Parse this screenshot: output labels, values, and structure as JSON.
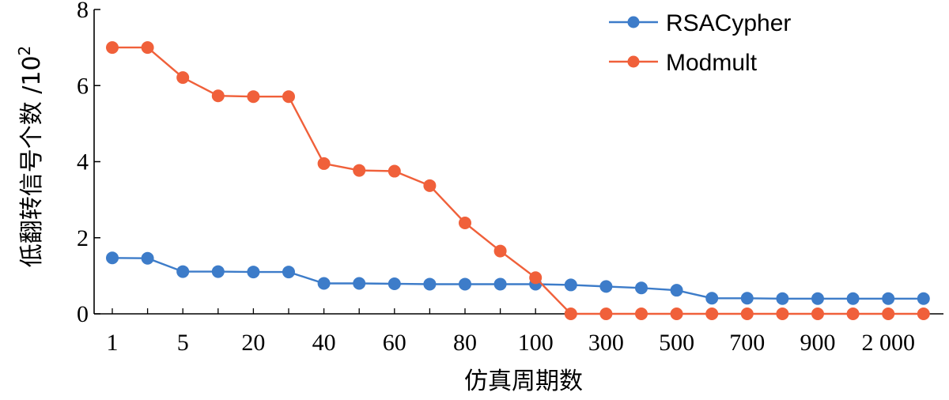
{
  "chart_data": {
    "type": "line",
    "title": "",
    "xlabel": "仿真周期数",
    "ylabel": "低翻转信号个数 /10",
    "ylabel_exponent": "2",
    "ylim": [
      0,
      8
    ],
    "yticks": [
      "0",
      "2",
      "4",
      "6",
      "8"
    ],
    "xtick_labels": [
      "1",
      "5",
      "20",
      "40",
      "60",
      "80",
      "100",
      "300",
      "500",
      "700",
      "900",
      "2 000"
    ],
    "x": [
      "1",
      "3",
      "5",
      "10",
      "20",
      "30",
      "40",
      "50",
      "60",
      "70",
      "80",
      "90",
      "100",
      "200",
      "300",
      "400",
      "500",
      "600",
      "700",
      "800",
      "900",
      "1 000",
      "2 000",
      "3 000"
    ],
    "series": [
      {
        "name": "RSACypher",
        "color": "#3d7cc9",
        "values": [
          1.47,
          1.46,
          1.11,
          1.11,
          1.1,
          1.1,
          0.8,
          0.8,
          0.79,
          0.78,
          0.78,
          0.78,
          0.78,
          0.76,
          0.72,
          0.68,
          0.62,
          0.41,
          0.41,
          0.4,
          0.4,
          0.4,
          0.4,
          0.4
        ]
      },
      {
        "name": "Modmult",
        "color": "#f0603a",
        "values": [
          7.0,
          7.0,
          6.21,
          5.73,
          5.71,
          5.71,
          3.95,
          3.77,
          3.75,
          3.37,
          2.39,
          1.65,
          0.95,
          0.0,
          0.0,
          0.0,
          0.0,
          0.0,
          0.0,
          0.0,
          0.0,
          0.0,
          0.0,
          0.0
        ]
      }
    ],
    "legend": [
      "RSACypher",
      "Modmult"
    ],
    "legend_position": "top-right",
    "grid": false
  }
}
